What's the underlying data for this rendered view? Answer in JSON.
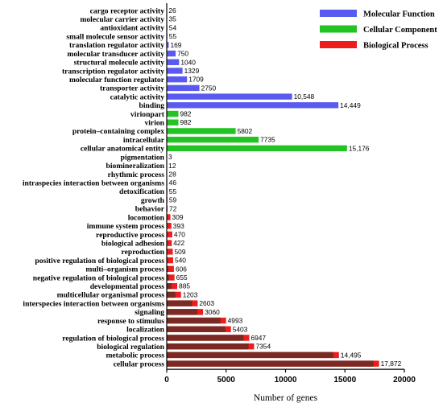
{
  "chart_data": {
    "type": "bar",
    "orientation": "horizontal",
    "title": "",
    "xlabel": "Number of genes",
    "ylabel": "",
    "xlim": [
      0,
      20000
    ],
    "xticks": [
      "0",
      "5000",
      "10000",
      "15000",
      "20000"
    ],
    "grid": false,
    "legend_position": "top-right",
    "series": [
      {
        "name": "Molecular Function",
        "color": "#5a5af0",
        "categories": [
          "cargo receptor activity",
          "molecular carrier activity",
          "antioxidant activity",
          "small molecule sensor activity",
          "translation regulator activity",
          "molecular transducer activity",
          "structural molecule activity",
          "transcription regulator activity",
          "molecular function regulator",
          "transporter activity",
          "catalytic activity",
          "binding"
        ],
        "values": [
          26,
          35,
          54,
          55,
          169,
          750,
          1040,
          1329,
          1709,
          2750,
          10548,
          14449
        ],
        "value_labels": [
          "26",
          "35",
          "54",
          "55",
          "169",
          "750",
          "1040",
          "1329",
          "1709",
          "2750",
          "10,548",
          "14,449"
        ]
      },
      {
        "name": "Cellular Component",
        "color": "#22c322",
        "categories": [
          "virionpart",
          "virion",
          "protein–containing complex",
          "intracellular",
          "cellular anatomical entity"
        ],
        "values": [
          982,
          982,
          5802,
          7735,
          15176
        ],
        "value_labels": [
          "982",
          "982",
          "5802",
          "7735",
          "15,176"
        ]
      },
      {
        "name": "Biological Process",
        "color": "#ee1c1c",
        "categories": [
          "pigmentation",
          "biomineralization",
          "rhythmic process",
          "intraspecies interaction between organisms",
          "detoxification",
          "growth",
          "behavior",
          "locomotion",
          "immune system process",
          "reproductive process",
          "biological adhesion",
          "reproduction",
          "positive regulation of biological process",
          "multi–organism process",
          "negative regulation of biological process",
          "developmental process",
          "multicellular organismal process",
          "interspecies interaction between organisms",
          "signaling",
          "response to stimulus",
          "localization",
          "regulation of biological process",
          "biological regulation",
          "metabolic process",
          "cellular process"
        ],
        "values": [
          3,
          12,
          28,
          46,
          55,
          59,
          72,
          309,
          393,
          470,
          422,
          509,
          540,
          606,
          655,
          885,
          1203,
          2603,
          3060,
          4993,
          5403,
          6947,
          7354,
          14495,
          17872
        ],
        "value_labels": [
          "3",
          "12",
          "28",
          "46",
          "55",
          "59",
          "72",
          "309",
          "393",
          "470",
          "422",
          "509",
          "540",
          "606",
          "655",
          "885",
          "1203",
          "2603",
          "3060",
          "4993",
          "5403",
          "6947",
          "7354",
          "14,495",
          "17,872"
        ]
      }
    ]
  }
}
